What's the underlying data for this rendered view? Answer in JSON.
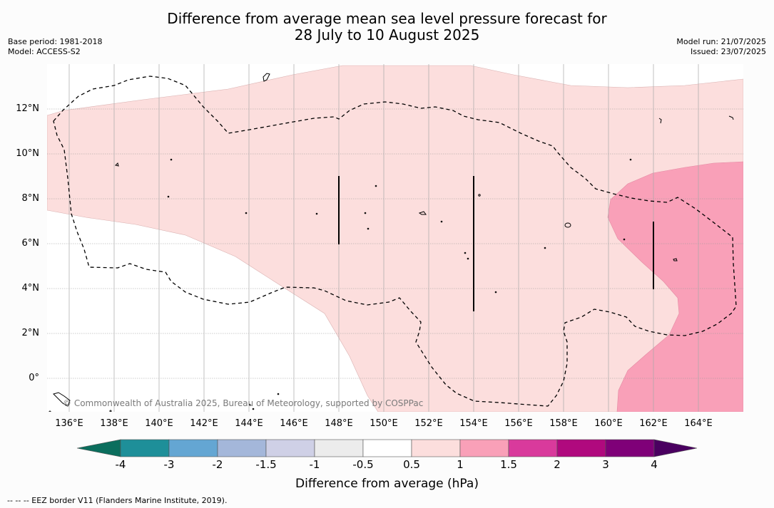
{
  "header": {
    "title_line1": "Difference from average mean sea level pressure forecast for",
    "title_line2": "28 July to 10 August 2025",
    "base_period": "Base period: 1981-2018",
    "model": "Model: ACCESS-S2",
    "model_run": "Model run: 21/07/2025",
    "issued": "Issued: 23/07/2025"
  },
  "map": {
    "lat_labels": [
      "12°N",
      "10°N",
      "8°N",
      "6°N",
      "4°N",
      "2°N",
      "0°"
    ],
    "lon_labels": [
      "136°E",
      "138°E",
      "140°E",
      "142°E",
      "144°E",
      "146°E",
      "148°E",
      "150°E",
      "152°E",
      "154°E",
      "156°E",
      "158°E",
      "160°E",
      "162°E",
      "164°E"
    ],
    "copyright": "© Commonwealth of Australia 2025, Bureau of Meteorology, supported by COSPPac",
    "colors": {
      "light_pink": "#fcdedd",
      "pink": "#f9a0b8",
      "grid": "#aaaaaa",
      "eez": "#000000"
    }
  },
  "colorbar": {
    "ticks": [
      "-4",
      "-3",
      "-2",
      "-1.5",
      "-1",
      "-0.5",
      "0.5",
      "1",
      "1.5",
      "2",
      "3",
      "4"
    ],
    "colors": [
      "#0b6e5d",
      "#1e8f99",
      "#64a6d3",
      "#a4b7da",
      "#cfd0e6",
      "#ececec",
      "#ffffff",
      "#fcdedd",
      "#f9a0b8",
      "#d93a9c",
      "#b0097e",
      "#7f0078",
      "#4a0060"
    ],
    "label": "Difference from average (hPa)"
  },
  "footnote": "--  --  -- EEZ border V11 (Flanders Marine Institute, 2019)."
}
